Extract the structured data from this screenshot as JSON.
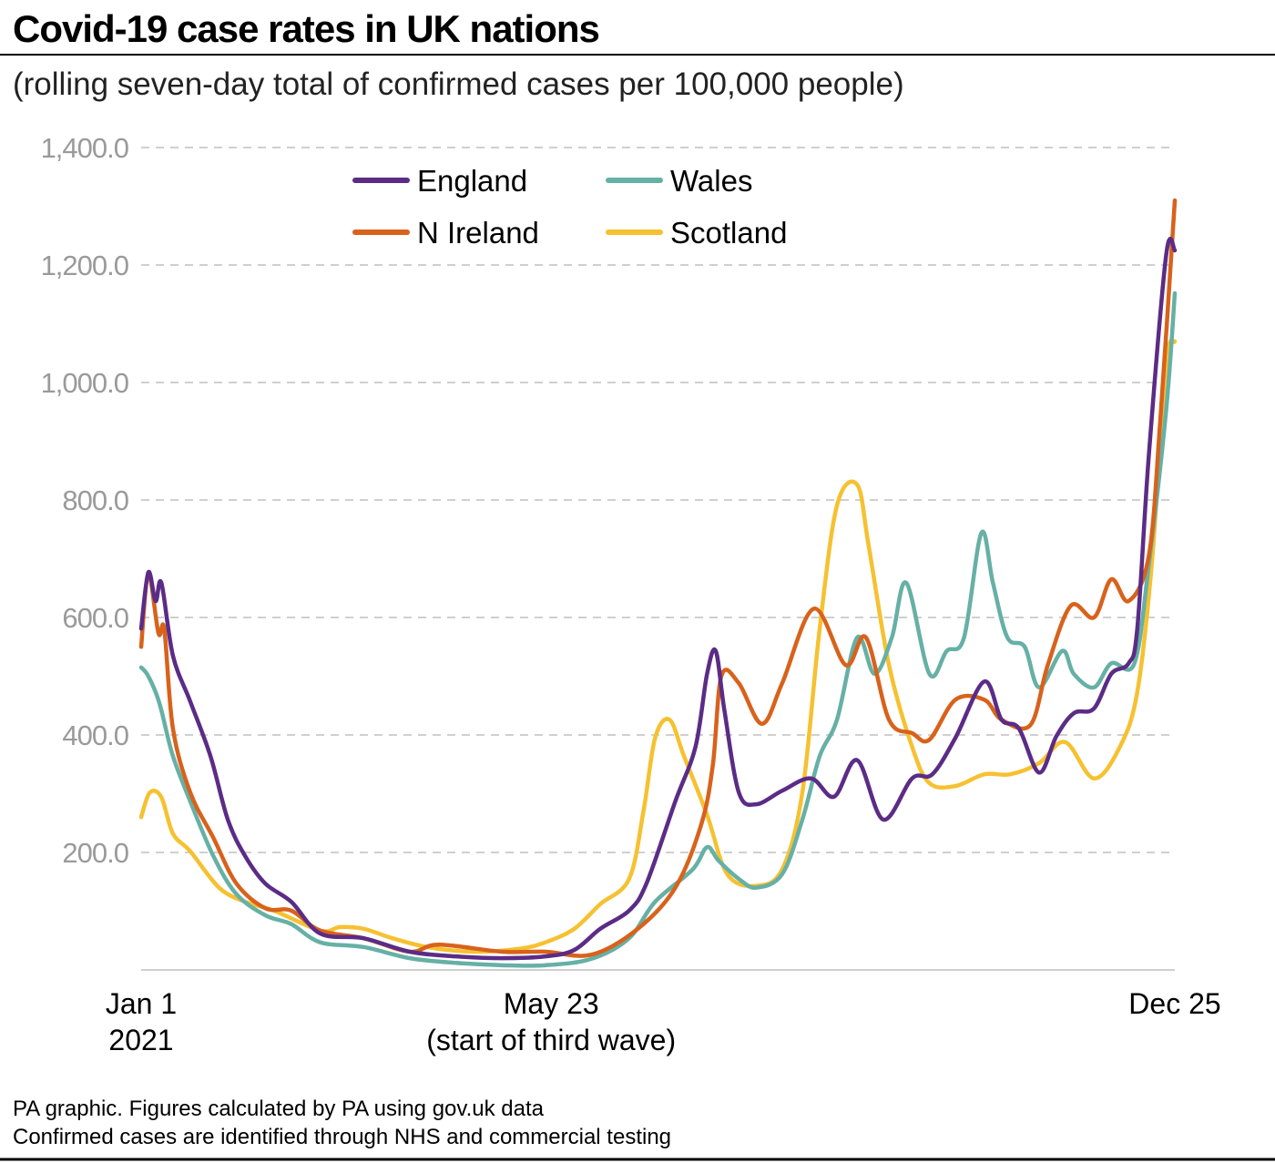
{
  "chart_data": {
    "type": "line",
    "title": "Covid-19 case rates in UK nations",
    "subtitle": "(rolling seven-day total of confirmed cases per 100,000 people)",
    "xlabel": "",
    "ylabel": "",
    "x_unit": "days since Jan 1 2021",
    "xlim": [
      0,
      358
    ],
    "ylim": [
      0,
      1400
    ],
    "yticks": [
      200,
      400,
      600,
      800,
      1000,
      1200,
      1400
    ],
    "ytick_labels": [
      "200.0",
      "400.0",
      "600.0",
      "800.0",
      "1,000.0",
      "1,200.0",
      "1,400.0"
    ],
    "xticks": [
      {
        "day": 0,
        "line1": "Jan 1",
        "line2": "2021"
      },
      {
        "day": 142,
        "line1": "May 23",
        "line2": "(start of third wave)"
      },
      {
        "day": 358,
        "line1": "Dec 25",
        "line2": ""
      }
    ],
    "grid": true,
    "legend_position": "top-left",
    "series": [
      {
        "name": "England",
        "color": "#5b2c86",
        "points": [
          [
            0,
            581
          ],
          [
            2.5,
            677
          ],
          [
            5,
            628
          ],
          [
            7,
            659
          ],
          [
            11,
            535
          ],
          [
            17,
            457
          ],
          [
            24,
            364
          ],
          [
            30,
            256
          ],
          [
            36,
            194
          ],
          [
            43,
            147
          ],
          [
            52,
            116
          ],
          [
            62,
            62
          ],
          [
            77,
            54
          ],
          [
            93,
            31
          ],
          [
            109,
            23
          ],
          [
            125,
            20
          ],
          [
            140,
            23
          ],
          [
            150,
            34
          ],
          [
            159,
            70
          ],
          [
            169,
            101
          ],
          [
            175,
            147
          ],
          [
            185,
            287
          ],
          [
            192,
            380
          ],
          [
            196,
            504
          ],
          [
            199,
            543
          ],
          [
            202,
            442
          ],
          [
            207,
            302
          ],
          [
            213,
            282
          ],
          [
            222,
            305
          ],
          [
            232,
            326
          ],
          [
            240,
            295
          ],
          [
            248,
            357
          ],
          [
            257,
            256
          ],
          [
            267,
            326
          ],
          [
            274,
            333
          ],
          [
            282,
            395
          ],
          [
            292,
            491
          ],
          [
            298,
            426
          ],
          [
            304,
            411
          ],
          [
            311,
            336
          ],
          [
            317,
            398
          ],
          [
            323,
            437
          ],
          [
            330,
            445
          ],
          [
            336,
            504
          ],
          [
            342,
            522
          ],
          [
            345,
            581
          ],
          [
            349,
            876
          ],
          [
            355,
            1217
          ],
          [
            358,
            1225
          ]
        ]
      },
      {
        "name": "N Ireland",
        "color": "#d8621b",
        "points": [
          [
            0,
            550
          ],
          [
            2.5,
            674
          ],
          [
            6,
            573
          ],
          [
            8,
            580
          ],
          [
            11,
            411
          ],
          [
            17,
            302
          ],
          [
            25,
            225
          ],
          [
            33,
            147
          ],
          [
            43,
            105
          ],
          [
            52,
            101
          ],
          [
            62,
            67
          ],
          [
            77,
            54
          ],
          [
            93,
            31
          ],
          [
            103,
            43
          ],
          [
            125,
            31
          ],
          [
            140,
            31
          ],
          [
            156,
            26
          ],
          [
            172,
            70
          ],
          [
            185,
            140
          ],
          [
            194,
            248
          ],
          [
            198,
            349
          ],
          [
            201,
            501
          ],
          [
            207,
            488
          ],
          [
            215,
            419
          ],
          [
            222,
            488
          ],
          [
            233,
            615
          ],
          [
            244,
            519
          ],
          [
            251,
            566
          ],
          [
            259,
            426
          ],
          [
            267,
            403
          ],
          [
            273,
            392
          ],
          [
            282,
            460
          ],
          [
            292,
            460
          ],
          [
            298,
            426
          ],
          [
            308,
            417
          ],
          [
            314,
            519
          ],
          [
            322,
            620
          ],
          [
            330,
            600
          ],
          [
            336,
            665
          ],
          [
            342,
            628
          ],
          [
            349,
            705
          ],
          [
            353,
            938
          ],
          [
            358,
            1310
          ]
        ]
      },
      {
        "name": "Wales",
        "color": "#66b0a6",
        "points": [
          [
            0,
            515
          ],
          [
            2,
            504
          ],
          [
            5,
            473
          ],
          [
            7,
            442
          ],
          [
            11,
            364
          ],
          [
            17,
            287
          ],
          [
            25,
            194
          ],
          [
            33,
            129
          ],
          [
            43,
            93
          ],
          [
            52,
            78
          ],
          [
            62,
            47
          ],
          [
            77,
            39
          ],
          [
            93,
            20
          ],
          [
            109,
            12
          ],
          [
            125,
            8
          ],
          [
            140,
            8
          ],
          [
            156,
            19
          ],
          [
            169,
            54
          ],
          [
            178,
            116
          ],
          [
            191,
            171
          ],
          [
            196,
            209
          ],
          [
            200,
            186
          ],
          [
            207,
            155
          ],
          [
            213,
            140
          ],
          [
            222,
            163
          ],
          [
            229,
            256
          ],
          [
            235,
            364
          ],
          [
            241,
            426
          ],
          [
            248,
            566
          ],
          [
            254,
            504
          ],
          [
            260,
            566
          ],
          [
            265,
            659
          ],
          [
            273,
            504
          ],
          [
            279,
            543
          ],
          [
            285,
            566
          ],
          [
            291,
            744
          ],
          [
            295,
            659
          ],
          [
            300,
            566
          ],
          [
            306,
            550
          ],
          [
            311,
            481
          ],
          [
            319,
            543
          ],
          [
            323,
            504
          ],
          [
            330,
            481
          ],
          [
            336,
            522
          ],
          [
            344,
            522
          ],
          [
            349,
            690
          ],
          [
            355,
            953
          ],
          [
            358,
            1152
          ]
        ]
      },
      {
        "name": "Scotland",
        "color": "#f6c131",
        "points": [
          [
            0,
            260
          ],
          [
            3,
            302
          ],
          [
            7,
            294
          ],
          [
            11,
            232
          ],
          [
            17,
            202
          ],
          [
            27,
            140
          ],
          [
            36,
            116
          ],
          [
            46,
            101
          ],
          [
            62,
            67
          ],
          [
            69,
            73
          ],
          [
            77,
            70
          ],
          [
            87,
            54
          ],
          [
            99,
            39
          ],
          [
            115,
            31
          ],
          [
            131,
            36
          ],
          [
            140,
            47
          ],
          [
            150,
            70
          ],
          [
            159,
            112
          ],
          [
            169,
            155
          ],
          [
            174,
            271
          ],
          [
            178,
            395
          ],
          [
            183,
            426
          ],
          [
            188,
            364
          ],
          [
            196,
            264
          ],
          [
            203,
            163
          ],
          [
            213,
            143
          ],
          [
            222,
            171
          ],
          [
            229,
            302
          ],
          [
            235,
            581
          ],
          [
            241,
            791
          ],
          [
            248,
            826
          ],
          [
            252,
            721
          ],
          [
            259,
            519
          ],
          [
            267,
            380
          ],
          [
            273,
            318
          ],
          [
            282,
            313
          ],
          [
            292,
            333
          ],
          [
            301,
            333
          ],
          [
            311,
            352
          ],
          [
            320,
            388
          ],
          [
            330,
            326
          ],
          [
            339,
            380
          ],
          [
            345,
            473
          ],
          [
            350,
            690
          ],
          [
            355,
            1031
          ],
          [
            358,
            1070
          ]
        ]
      }
    ]
  },
  "footer": {
    "line1": "PA graphic. Figures calculated by PA using gov.uk data",
    "line2": "Confirmed cases are identified through NHS and commercial testing"
  }
}
